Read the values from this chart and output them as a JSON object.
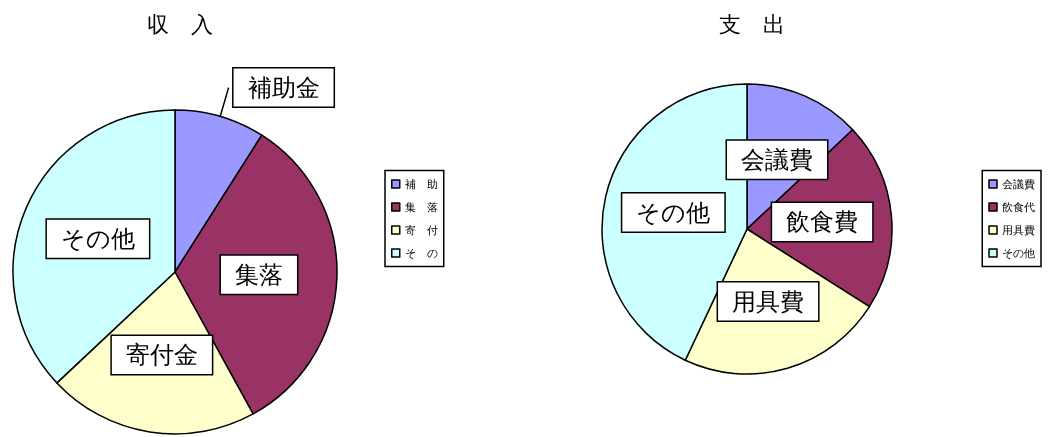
{
  "chart_data": [
    {
      "type": "pie",
      "title": "収　入",
      "categories": [
        "補　助",
        "集　落",
        "寄　付",
        "そ　の"
      ],
      "values": [
        9,
        33,
        21,
        37
      ],
      "colors": [
        "#9999ff",
        "#993366",
        "#ffffcc",
        "#ccffff"
      ],
      "legend": "right",
      "annotations": [
        {
          "text": "補助金",
          "x": "補　助"
        },
        {
          "text": "集落",
          "x": "集　落"
        },
        {
          "text": "寄付金",
          "x": "寄　付"
        },
        {
          "text": "その他",
          "x": "そ　の"
        }
      ]
    },
    {
      "type": "pie",
      "title": "支　出",
      "categories": [
        "会議費",
        "飲食代",
        "用具費",
        "その他"
      ],
      "values": [
        13,
        21,
        23,
        43
      ],
      "colors": [
        "#9999ff",
        "#993366",
        "#ffffcc",
        "#ccffff"
      ],
      "legend": "right",
      "annotations": [
        {
          "text": "会議費",
          "x": "会議費"
        },
        {
          "text": "飲食費",
          "x": "飲食代"
        },
        {
          "text": "用具費",
          "x": "用具費"
        },
        {
          "text": "その他",
          "x": "その他"
        }
      ]
    }
  ]
}
